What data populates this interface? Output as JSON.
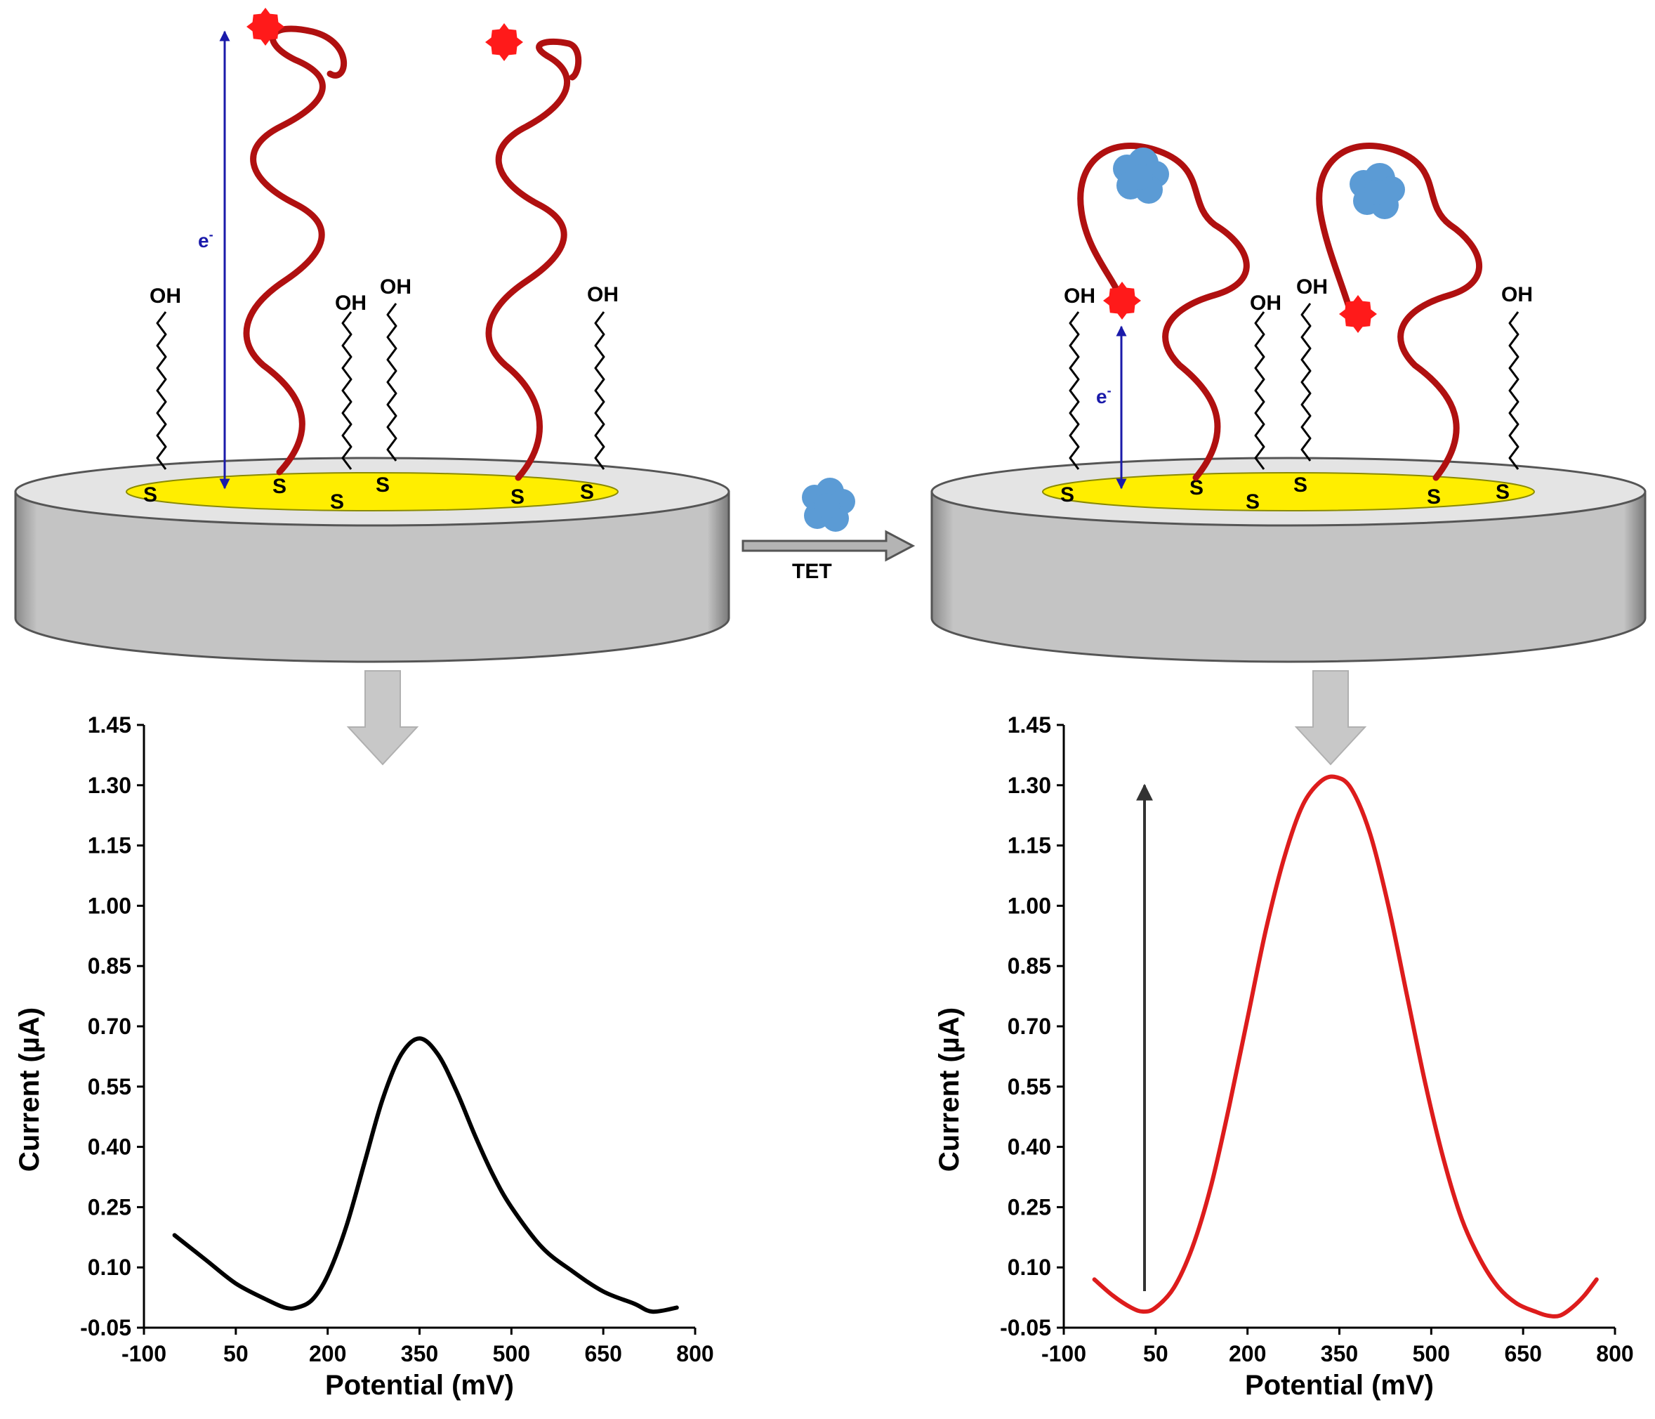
{
  "scheme": {
    "electron_label_left": "e",
    "electron_label_right": "e",
    "electron_sup": "-",
    "hydroxyl_label": "OH",
    "sulfur_label": "S",
    "target_label": "TET",
    "colors": {
      "electrode_body": "#c4c4c4",
      "electrode_top": "#e4e4e4",
      "gold_surface": "#ffee00",
      "aptamer": "#b01010",
      "redox_tag": "#ff1a1a",
      "target_molecule": "#5b9bd5",
      "electron_arrow": "#1a1aaa"
    }
  },
  "chart_data": [
    {
      "type": "line",
      "panel": "left",
      "xlabel": "Potential (mV)",
      "ylabel": "Current (µA)",
      "xlim": [
        -100,
        800
      ],
      "ylim": [
        -0.05,
        1.45
      ],
      "xticks": [
        "-100",
        "50",
        "200",
        "350",
        "500",
        "650",
        "800"
      ],
      "yticks": [
        "-0.05",
        "0.10",
        "0.25",
        "0.40",
        "0.55",
        "0.70",
        "0.85",
        "1.00",
        "1.15",
        "1.30",
        "1.45"
      ],
      "line_color": "#000000",
      "x": [
        -50,
        0,
        50,
        100,
        130,
        150,
        175,
        200,
        230,
        260,
        290,
        320,
        350,
        380,
        410,
        440,
        470,
        500,
        550,
        600,
        650,
        700,
        730,
        770
      ],
      "y": [
        0.18,
        0.12,
        0.06,
        0.02,
        0.0,
        0.0,
        0.02,
        0.08,
        0.2,
        0.36,
        0.52,
        0.63,
        0.67,
        0.63,
        0.54,
        0.43,
        0.33,
        0.25,
        0.15,
        0.09,
        0.04,
        0.01,
        -0.01,
        0.0
      ]
    },
    {
      "type": "line",
      "panel": "right",
      "xlabel": "Potential (mV)",
      "ylabel": "Current (µA)",
      "xlim": [
        -100,
        800
      ],
      "ylim": [
        -0.05,
        1.45
      ],
      "xticks": [
        "-100",
        "50",
        "200",
        "350",
        "500",
        "650",
        "800"
      ],
      "yticks": [
        "-0.05",
        "0.10",
        "0.25",
        "0.40",
        "0.55",
        "0.70",
        "0.85",
        "1.00",
        "1.15",
        "1.30",
        "1.45"
      ],
      "line_color": "#dd1c1c",
      "x": [
        -50,
        -20,
        10,
        30,
        50,
        80,
        110,
        140,
        170,
        200,
        230,
        260,
        290,
        320,
        345,
        370,
        400,
        430,
        460,
        490,
        520,
        550,
        580,
        610,
        640,
        670,
        690,
        710,
        730,
        750,
        770
      ],
      "y": [
        0.07,
        0.03,
        0.0,
        -0.01,
        0.0,
        0.05,
        0.15,
        0.3,
        0.5,
        0.72,
        0.94,
        1.12,
        1.25,
        1.31,
        1.32,
        1.29,
        1.18,
        1.0,
        0.78,
        0.56,
        0.37,
        0.22,
        0.12,
        0.05,
        0.01,
        -0.01,
        -0.02,
        -0.02,
        0.0,
        0.03,
        0.07
      ]
    }
  ]
}
